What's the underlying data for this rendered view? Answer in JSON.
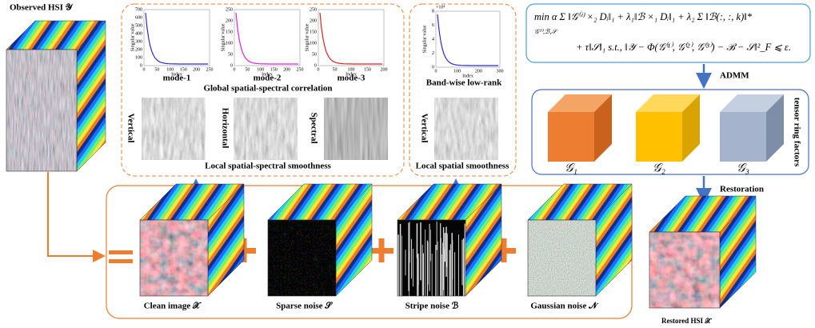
{
  "observed": {
    "label": "Observed HSI 𝒴"
  },
  "global": {
    "plots": [
      {
        "label": "mode-1",
        "ylabel": "Singular value",
        "xlabel": "Index",
        "yticks": [
          0,
          100,
          200,
          300,
          400,
          500,
          600,
          700
        ],
        "xticks": [
          0,
          50,
          100,
          150,
          200,
          250
        ]
      },
      {
        "label": "mode-2",
        "ylabel": "Singular value",
        "xlabel": "Index",
        "yticks": [
          0,
          50,
          100,
          150,
          200,
          250
        ],
        "xticks": [
          0,
          50,
          100,
          150,
          200,
          250
        ]
      },
      {
        "label": "mode-3",
        "ylabel": "Singular value",
        "xlabel": "Index",
        "yticks": [
          0,
          50,
          100,
          150,
          200,
          250
        ],
        "xticks": [
          0,
          50,
          100,
          150,
          200
        ]
      }
    ],
    "caption": "Global spatial-spectral correlation",
    "smooth": [
      "Vertical",
      "Horizontal",
      "Spectral"
    ],
    "smooth_caption": "Local spatial-spectral smoothness"
  },
  "band": {
    "plot": {
      "ylabel": "Singular value",
      "xlabel": "Index",
      "scale": "×10⁴",
      "yticks": [
        0,
        2,
        4,
        6,
        8
      ],
      "xticks": [
        0,
        100,
        200,
        300
      ]
    },
    "caption": "Band-wise low-rank",
    "smooth": "Vertical",
    "smooth_caption": "Local spatial smoothness"
  },
  "formula": {
    "line1": "min  α Σ ‖𝒢⁽ⁱ⁾ ×₂ Dᵢ‖₁ + λ₁‖ℬ ×₁ Dᵢ‖₁ + λ₂ Σ ‖ℬ(:, :, k)‖*",
    "sub": "𝒢⁽ⁱ⁾,ℬ,𝒮",
    "line2": "+ τ‖𝒮‖₁  s.t.,  ‖𝒴 − Φ(𝒢⁽¹⁾, 𝒢⁽²⁾, 𝒢⁽³⁾) − ℬ − 𝒮‖²_F ⩽ ε."
  },
  "admm": "ADMM",
  "factors": {
    "title": "tensor ring factors",
    "labels": [
      "𝒢₁",
      "𝒢₂",
      "𝒢₃"
    ]
  },
  "restoration": "Restoration",
  "decomposition": [
    "Clean image 𝒳",
    "Sparse noise 𝒮",
    "Stripe noise ℬ",
    "Gaussian noise 𝒩"
  ],
  "restored": "Restored HSI 𝒳"
}
